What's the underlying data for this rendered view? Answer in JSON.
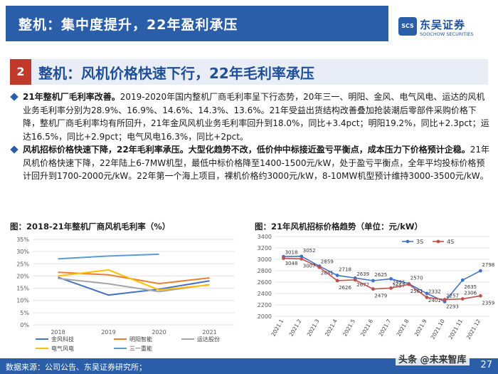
{
  "header": {
    "title": "整机：集中度提升，22年盈利承压"
  },
  "logo": {
    "mark": "SCS",
    "cn": "东吴证券",
    "en": "SOOCHOW SECURITIES"
  },
  "section": {
    "num": "2",
    "title": "整机：风机价格快速下行，22年毛利率承压"
  },
  "bullets": [
    {
      "lead": "21年整机厂毛利率改善。",
      "text": "2019-2020年国内整机厂商毛利率呈下行态势，20年三一、明阳、金风、电气风电、运达的风机业务毛利率分别为28.9%、16.9%、14.6%、14.3%、13.6%。21年受益出货结构改善叠加抢装潮后零部件采购价格下降，整机厂商毛利率均有所回升，21年金风风机业务毛利率回升到18.0%，同比+3.4pct；明阳19.2%，同比+2.3pct；运达16.5%，同比+2.9pct；电气风电16.3%，同比+2pct。"
    },
    {
      "lead": "风机招标价格快速下降，22年毛利率承压。大型化趋势不改，低价仲中标接近盈亏平衡点，成本压力下价格预计企稳。",
      "text": "21年风机价格快速下降，22年陆上6-7MW机型，最低中标价格降至1400-1500元/kW，处于盈亏平衡点，全年平均投标价格预计回升到1700-2000元/kW。22年第一个海上项目，裸机价格约3000元/kW，8-10MW机型预计维持3000-3500元/kW。"
    }
  ],
  "figures": {
    "left_caption": "图：2018-21年整机厂商风机毛利率（%）",
    "right_caption": "图：21年风机招标价格趋势（单位：元/kW）"
  },
  "footer": {
    "source": "数据来源：公司公告、东吴证券研究所；",
    "page": "27"
  },
  "watermark": "头条 @未来智库",
  "colors": {
    "brand": "#2a5ea8",
    "accent_red": "#c0392b"
  },
  "chart_data": [
    {
      "type": "line",
      "categories": [
        "2018",
        "2019",
        "2020",
        "2021"
      ],
      "ylim": [
        0,
        35
      ],
      "yticks": [
        "0%",
        "5%",
        "10%",
        "15%",
        "20%",
        "25%",
        "30%",
        "35%"
      ],
      "legend_position": "bottom",
      "series": [
        {
          "name": "金风科技",
          "color": "#4472c4",
          "values": [
            19.5,
            12.2,
            14.6,
            18.0
          ]
        },
        {
          "name": "明阳智能",
          "color": "#ed7d31",
          "values": [
            21.5,
            20.5,
            16.9,
            19.2
          ]
        },
        {
          "name": "运达股份",
          "color": "#a5a5a5",
          "values": [
            19.0,
            16.8,
            13.6,
            16.5
          ]
        },
        {
          "name": "电气风电",
          "color": "#ffc000",
          "values": [
            20.0,
            22.5,
            14.3,
            16.3
          ]
        },
        {
          "name": "三一重能",
          "color": "#5b9bd5",
          "values": [
            27.0,
            28.2,
            28.9,
            null
          ]
        }
      ]
    },
    {
      "type": "line",
      "categories": [
        "2021.1",
        "2021.2",
        "2021.3",
        "2021.4",
        "2021.5",
        "2021.6",
        "2021.7",
        "2021.8",
        "2021.9",
        "2021.10",
        "2021.11",
        "2021.12"
      ],
      "ylim": [
        2000,
        3400
      ],
      "yticks": [
        "2000",
        "2200",
        "2400",
        "2600",
        "2800",
        "3000",
        "3200",
        "3400"
      ],
      "legend_position": "top-right",
      "series": [
        {
          "name": "3S",
          "color": "#4472c4",
          "values": [
            3048,
            3052,
            2881,
            2718,
            2672,
            2625,
            2657,
            2570,
            2401,
            2257,
            2635,
            2798
          ]
        },
        {
          "name": "4S",
          "color": "#c0504d",
          "values": [
            3018,
            3007,
            2859,
            2626,
            2639,
            2479,
            2495,
            2561,
            2332,
            2293,
            2306,
            2359
          ]
        }
      ]
    }
  ]
}
